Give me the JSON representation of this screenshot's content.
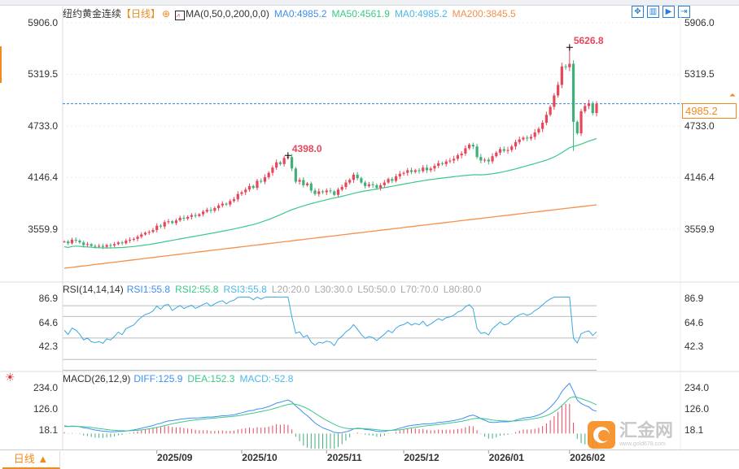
{
  "header": {
    "symbol": "纽约黄金连续",
    "period": "【日线】",
    "ma_indicator": "MA(0,50,0,200,0,0)",
    "ma_values": [
      {
        "label": "MA0:4985.2",
        "color": "#3f8ff0"
      },
      {
        "label": "MA50:4561.9",
        "color": "#3cc88a"
      },
      {
        "label": "MA0:4985.2",
        "color": "#4fb8e8"
      },
      {
        "label": "MA200:3845.5",
        "color": "#f5904a"
      }
    ],
    "toolbar_icons": [
      "move-icon",
      "bar-chart-icon",
      "play-icon",
      "exit-icon"
    ]
  },
  "price_axis": [
    "5906.0",
    "5319.5",
    "4733.0",
    "4146.4",
    "3559.9"
  ],
  "current_price": "4985.2",
  "price_labels": {
    "high": "5626.8",
    "local_high": "4398.0"
  },
  "rsi": {
    "title": "RSI(14,14,14)",
    "values": [
      {
        "label": "RSI1:55.8",
        "color": "#3f8ff0"
      },
      {
        "label": "RSI2:55.8",
        "color": "#3cc88a"
      },
      {
        "label": "RSI3:55.8",
        "color": "#4fb8e8"
      },
      {
        "label": "L20:20.0",
        "color": "#aaaaaa"
      },
      {
        "label": "L30:30.0",
        "color": "#aaaaaa"
      },
      {
        "label": "L50:50.0",
        "color": "#aaaaaa"
      },
      {
        "label": "L70:70.0",
        "color": "#aaaaaa"
      },
      {
        "label": "L80:80.0",
        "color": "#aaaaaa"
      }
    ],
    "axis": [
      "86.9",
      "64.6",
      "42.3"
    ],
    "levels": [
      20,
      30,
      50,
      70,
      80
    ]
  },
  "macd": {
    "title": "MACD(26,12,9)",
    "values": [
      {
        "label": "DIFF:125.9",
        "color": "#3f8ff0"
      },
      {
        "label": "DEA:152.3",
        "color": "#3cc88a"
      },
      {
        "label": "MACD:-52.8",
        "color": "#4fb8e8"
      }
    ],
    "axis": [
      "234.0",
      "126.0",
      "18.1"
    ]
  },
  "x_axis": {
    "period_button": "日线 ▲",
    "months": [
      {
        "label": "2025/09",
        "index": 24
      },
      {
        "label": "2025/10",
        "index": 46
      },
      {
        "label": "2025/11",
        "index": 68
      },
      {
        "label": "2025/12",
        "index": 88
      },
      {
        "label": "2026/01",
        "index": 110
      },
      {
        "label": "2026/02",
        "index": 131
      }
    ]
  },
  "watermark": {
    "text": "汇金网",
    "url": "www.gold678.com"
  },
  "colors": {
    "up": "#e8465a",
    "down": "#3fb07a",
    "ma50": "#3cc88a",
    "ma200": "#f5904a",
    "current_line": "#2a8ae8",
    "accent": "#f08a1c"
  },
  "chart_data": {
    "type": "candlestick",
    "closes": [
      3420,
      3400,
      3440,
      3430,
      3410,
      3380,
      3390,
      3370,
      3365,
      3370,
      3360,
      3380,
      3375,
      3390,
      3410,
      3400,
      3430,
      3440,
      3450,
      3475,
      3500,
      3520,
      3530,
      3550,
      3600,
      3590,
      3640,
      3650,
      3630,
      3660,
      3690,
      3680,
      3700,
      3720,
      3710,
      3730,
      3760,
      3780,
      3770,
      3800,
      3830,
      3850,
      3840,
      3880,
      3900,
      3960,
      3980,
      4010,
      4050,
      4030,
      4110,
      4100,
      4150,
      4200,
      4260,
      4320,
      4300,
      4370,
      4380,
      4250,
      4100,
      4120,
      4060,
      4080,
      4000,
      3960,
      3990,
      3980,
      4000,
      3990,
      3950,
      4010,
      4040,
      4090,
      4120,
      4180,
      4140,
      4090,
      4050,
      4070,
      4060,
      4030,
      4060,
      4090,
      4130,
      4110,
      4160,
      4190,
      4200,
      4230,
      4210,
      4230,
      4220,
      4260,
      4230,
      4250,
      4280,
      4310,
      4300,
      4330,
      4340,
      4360,
      4400,
      4420,
      4480,
      4520,
      4500,
      4380,
      4340,
      4350,
      4330,
      4390,
      4430,
      4470,
      4450,
      4460,
      4500,
      4550,
      4580,
      4600,
      4590,
      4610,
      4660,
      4700,
      4770,
      4860,
      4950,
      5080,
      5200,
      5410,
      5400,
      5440,
      4780,
      4650,
      4900,
      4960,
      4990,
      4880,
      4985
    ],
    "ma200": [
      3116,
      3300,
      3480,
      3660,
      3837
    ],
    "ylim": [
      3559.9,
      5906.0
    ]
  }
}
